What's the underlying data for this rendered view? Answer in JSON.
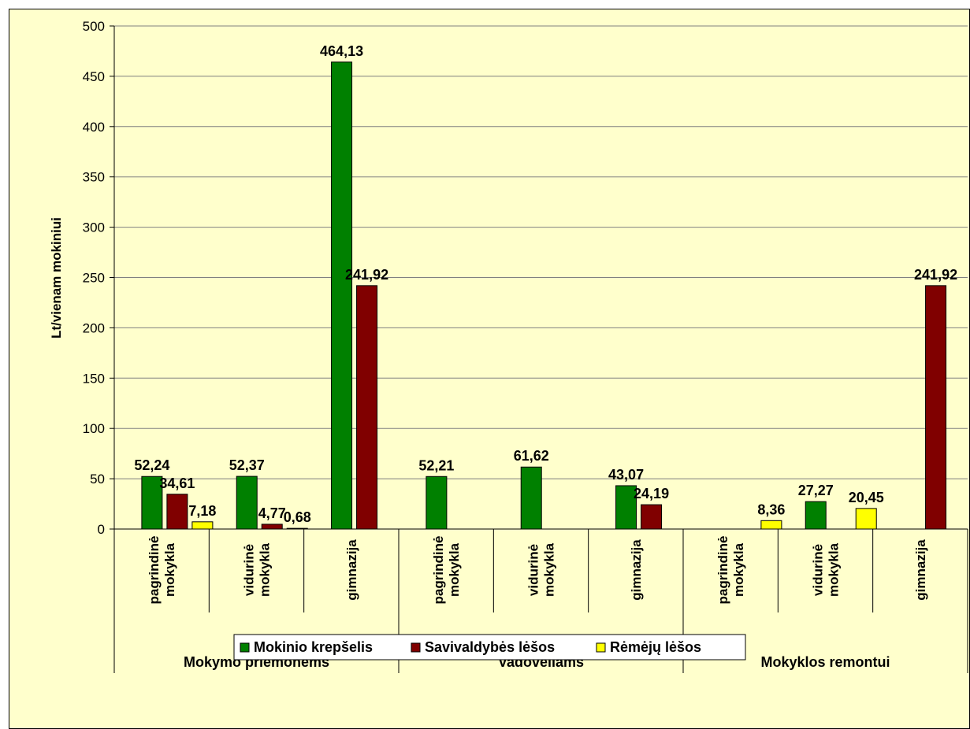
{
  "chart_data": {
    "type": "bar",
    "ylabel": "Lt/vienam mokiniui",
    "ylim": [
      0,
      500
    ],
    "yticks": [
      0,
      50,
      100,
      150,
      200,
      250,
      300,
      350,
      400,
      450,
      500
    ],
    "grid": true,
    "legend_position": "bottom",
    "groups": [
      {
        "label": "Mokymo priemonėms",
        "subcategories": [
          [
            "pagrindinė",
            "mokykla"
          ],
          [
            "vidurinė",
            "mokykla"
          ],
          [
            "gimnazija"
          ]
        ]
      },
      {
        "label": "Vadovėliams",
        "subcategories": [
          [
            "pagrindinė",
            "mokykla"
          ],
          [
            "vidurinė",
            "mokykla"
          ],
          [
            "gimnazija"
          ]
        ]
      },
      {
        "label": "Mokyklos remontui",
        "subcategories": [
          [
            "pagrindinė",
            "mokykla"
          ],
          [
            "vidurinė",
            "mokykla"
          ],
          [
            "gimnazija"
          ]
        ]
      }
    ],
    "series": [
      {
        "name": "Mokinio krepšelis",
        "color": "#008000",
        "values": [
          52.24,
          52.37,
          464.13,
          52.21,
          61.62,
          43.07,
          null,
          27.27,
          null
        ],
        "labels": [
          "52,24",
          "52,37",
          "464,13",
          "52,21",
          "61,62",
          "43,07",
          "",
          "27,27",
          ""
        ]
      },
      {
        "name": "Savivaldybės lėšos",
        "color": "#800000",
        "values": [
          34.61,
          4.77,
          241.92,
          null,
          null,
          24.19,
          null,
          null,
          241.92
        ],
        "labels": [
          "34,61",
          "4,77",
          "241,92",
          "",
          "",
          "24,19",
          "",
          "",
          "241,92"
        ]
      },
      {
        "name": "Rėmėjų lėšos",
        "color": "#ffff00",
        "values": [
          7.18,
          0.68,
          null,
          null,
          null,
          null,
          8.36,
          20.45,
          null
        ],
        "labels": [
          "7,18",
          "0,68",
          "",
          "",
          "",
          "",
          "8,36",
          "20,45",
          ""
        ]
      }
    ]
  }
}
